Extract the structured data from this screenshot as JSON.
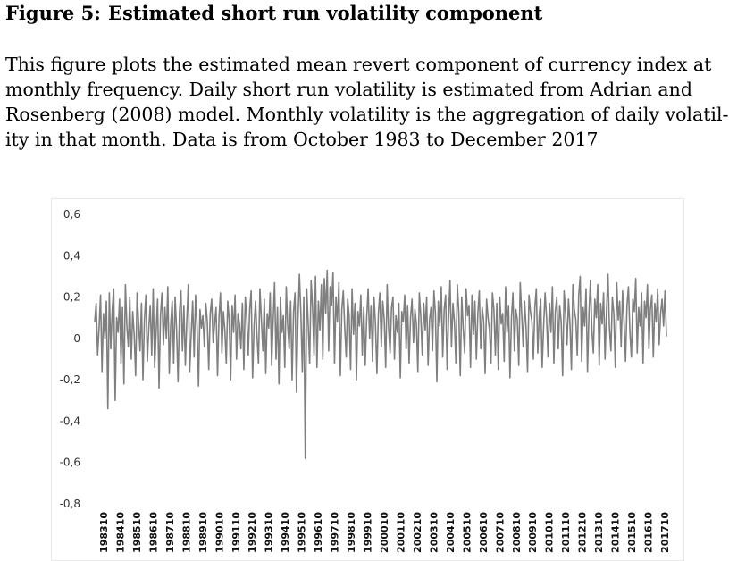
{
  "figure": {
    "label": "Figure 5:",
    "title": "Estimated short run volatility component"
  },
  "caption": {
    "lines": [
      "This figure plots the estimated mean revert component of currency index at",
      "monthly frequency.  Daily short run volatility is estimated from Adrian and",
      "Rosenberg (2008) model. Monthly volatility is the aggregation of daily volatil-",
      "ity in that month. Data is from October 1983 to December 2017"
    ]
  },
  "colors": {
    "line": "#7f7f7f",
    "text": "#333333"
  },
  "chart_data": {
    "type": "line",
    "title": "",
    "xlabel": "",
    "ylabel": "",
    "ylim": [
      -0.8,
      0.6
    ],
    "yticks": [
      "0,6",
      "0,4",
      "0,2",
      "0",
      "-0,2",
      "-0,4",
      "-0,6",
      "-0,8"
    ],
    "ytick_values": [
      0.6,
      0.4,
      0.2,
      0,
      -0.2,
      -0.4,
      -0.6,
      -0.8
    ],
    "grid": false,
    "legend": "none",
    "x_start": "1983-10",
    "x_end": "2017-12",
    "xtick_labels": [
      "198310",
      "198410",
      "198510",
      "198610",
      "198710",
      "198810",
      "198910",
      "199010",
      "199110",
      "199210",
      "199310",
      "199410",
      "199510",
      "199610",
      "199710",
      "199810",
      "199910",
      "200010",
      "200110",
      "200210",
      "200310",
      "200410",
      "200510",
      "200610",
      "200710",
      "200810",
      "200910",
      "201010",
      "201110",
      "201210",
      "201310",
      "201410",
      "201510",
      "201610",
      "201710"
    ],
    "series": [
      {
        "name": "",
        "values": [
          0.08,
          0.17,
          -0.08,
          0.05,
          0.21,
          -0.16,
          0.12,
          0.0,
          0.18,
          -0.34,
          0.22,
          -0.05,
          0.14,
          0.24,
          -0.3,
          0.1,
          0.03,
          0.19,
          -0.12,
          0.15,
          -0.22,
          0.26,
          0.06,
          -0.04,
          0.2,
          -0.1,
          0.13,
          0.02,
          -0.18,
          0.22,
          0.08,
          -0.06,
          0.17,
          -0.2,
          0.09,
          0.21,
          -0.11,
          0.05,
          0.16,
          -0.08,
          0.24,
          -0.14,
          0.03,
          0.19,
          -0.24,
          0.11,
          0.22,
          -0.03,
          0.15,
          0.0,
          0.25,
          -0.17,
          0.07,
          0.18,
          -0.12,
          0.2,
          0.04,
          -0.21,
          0.13,
          0.23,
          -0.06,
          0.16,
          -0.13,
          0.09,
          0.26,
          -0.16,
          0.02,
          0.18,
          -0.09,
          0.21,
          0.06,
          -0.23,
          0.14,
          0.05,
          0.11,
          -0.04,
          0.17,
          0.08,
          -0.15,
          0.12,
          0.19,
          -0.02,
          0.07,
          0.15,
          -0.18,
          0.1,
          0.22,
          -0.07,
          0.13,
          0.04,
          -0.12,
          0.18,
          0.09,
          -0.2,
          0.16,
          0.03,
          0.21,
          -0.1,
          0.12,
          0.07,
          -0.05,
          0.17,
          -0.15,
          0.2,
          0.1,
          -0.08,
          0.14,
          0.23,
          -0.19,
          0.06,
          0.18,
          0.01,
          -0.12,
          0.24,
          0.09,
          -0.06,
          0.19,
          -0.17,
          0.12,
          0.05,
          0.22,
          -0.13,
          0.08,
          0.27,
          -0.1,
          0.15,
          -0.22,
          0.2,
          0.03,
          0.11,
          -0.14,
          0.25,
          0.06,
          -0.05,
          0.18,
          -0.2,
          0.13,
          0.22,
          -0.26,
          0.09,
          0.31,
          0.12,
          -0.16,
          0.2,
          -0.58,
          0.24,
          0.07,
          -0.12,
          0.28,
          0.15,
          -0.08,
          0.3,
          -0.14,
          0.18,
          0.04,
          0.26,
          -0.1,
          0.29,
          0.12,
          0.33,
          -0.06,
          0.25,
          0.16,
          0.32,
          -0.12,
          0.2,
          0.08,
          0.27,
          -0.18,
          0.14,
          0.23,
          0.05,
          -0.09,
          0.19,
          0.11,
          -0.15,
          0.24,
          0.02,
          0.17,
          -0.2,
          0.13,
          0.06,
          0.21,
          -0.08,
          0.15,
          -0.13,
          0.1,
          0.24,
          0.0,
          0.16,
          -0.11,
          0.2,
          0.07,
          -0.17,
          0.12,
          0.22,
          -0.04,
          0.18,
          0.09,
          -0.14,
          0.26,
          0.05,
          -0.07,
          0.15,
          0.2,
          -0.1,
          0.11,
          0.03,
          0.17,
          -0.19,
          0.13,
          0.08,
          0.21,
          -0.05,
          0.16,
          -0.12,
          0.1,
          0.19,
          -0.02,
          0.14,
          0.07,
          -0.16,
          0.22,
          0.11,
          -0.08,
          0.17,
          0.04,
          0.2,
          -0.13,
          0.09,
          0.15,
          -0.06,
          0.23,
          0.12,
          -0.21,
          0.18,
          0.06,
          0.25,
          -0.09,
          0.14,
          0.21,
          -0.15,
          0.1,
          0.28,
          -0.04,
          0.17,
          0.08,
          -0.12,
          0.26,
          0.13,
          -0.18,
          0.2,
          0.05,
          -0.07,
          0.24,
          0.11,
          0.16,
          -0.14,
          0.21,
          0.02,
          0.18,
          -0.1,
          0.12,
          0.23,
          -0.05,
          0.15,
          0.08,
          -0.17,
          0.19,
          0.1,
          0.04,
          -0.12,
          0.22,
          0.14,
          -0.08,
          0.17,
          -0.15,
          0.2,
          0.07,
          0.12,
          -0.11,
          0.25,
          0.03,
          0.16,
          -0.19,
          0.1,
          0.22,
          -0.06,
          0.14,
          0.09,
          -0.13,
          0.27,
          0.12,
          -0.04,
          0.18,
          0.05,
          -0.16,
          0.21,
          0.13,
          0.08,
          -0.1,
          0.15,
          0.24,
          -0.07,
          0.11,
          0.19,
          -0.14,
          0.06,
          0.22,
          0.1,
          -0.09,
          0.17,
          0.03,
          0.25,
          -0.12,
          0.13,
          0.2,
          -0.05,
          0.16,
          0.08,
          -0.18,
          0.23,
          0.12,
          -0.03,
          0.19,
          0.07,
          -0.15,
          0.26,
          0.14,
          0.09,
          -0.08,
          0.21,
          0.3,
          -0.11,
          0.15,
          0.06,
          0.24,
          -0.16,
          0.12,
          0.28,
          0.04,
          -0.07,
          0.19,
          0.1,
          0.26,
          -0.13,
          0.17,
          0.07,
          0.22,
          -0.1,
          0.14,
          0.31,
          0.05,
          -0.06,
          0.2,
          0.12,
          -0.14,
          0.27,
          0.09,
          0.18,
          -0.04,
          0.23,
          0.08,
          -0.11,
          0.16,
          0.25,
          0.03,
          -0.09,
          0.19,
          0.13,
          0.29,
          -0.07,
          0.15,
          0.06,
          0.22,
          -0.12,
          0.18,
          0.1,
          0.26,
          -0.05,
          0.14,
          0.21,
          -0.09,
          0.17,
          0.08,
          0.24,
          -0.03,
          0.12,
          0.19,
          0.06,
          0.23,
          0.01
        ]
      }
    ]
  }
}
